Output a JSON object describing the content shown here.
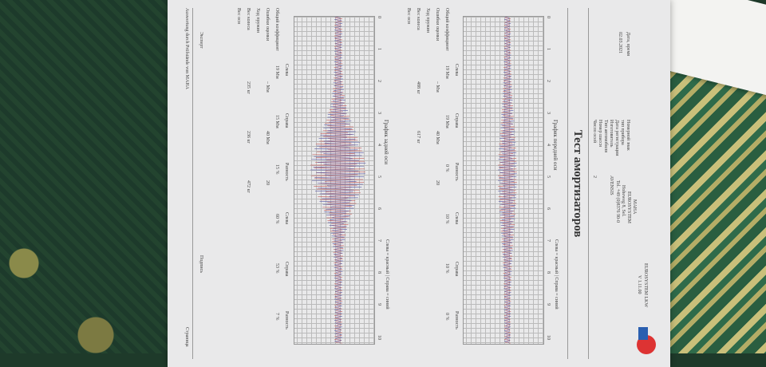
{
  "document": {
    "title": "Тест амортизаторов",
    "header_left": [
      "MAHA",
      "EUROSYSTEM",
      "Hoheweg 8, Sel.",
      "Tel. +49 (0)8376 90-0"
    ],
    "header_right": [
      "EUROSYSTEM LKW",
      "V 1.11.00"
    ],
    "info_labels": [
      "Номерной знак",
      "тип прибора",
      "Дата регистрации",
      "Изготовитель",
      "Тип автомобиля",
      "Номер шасси",
      "Число осей"
    ],
    "info_values": [
      "",
      "",
      "",
      "AVENSIS",
      "",
      "",
      "2"
    ],
    "date_label": "Дата, время",
    "date_value": "02.03.2021",
    "front": {
      "title": "График передней оси",
      "legend": "Слева = красный | Справа = синий",
      "col_headers": [
        "Слева",
        "Справа",
        "Разность",
        "Слева",
        "Справа",
        "Разность"
      ],
      "row_labels": [
        "Общий коэффициент",
        "Ошибки оценки",
        "Ход пружин",
        "Вес колеса",
        "Вес оси"
      ],
      "values": [
        "19 Мм",
        "19 Мм",
        "0 %",
        "10 %",
        "10 %",
        "0 %",
        "– Мм",
        "40 Мм",
        "20",
        "488 кг",
        "617 кг"
      ]
    },
    "rear": {
      "title": "График задней оси",
      "legend": "Слева = красный | Справа = синий",
      "col_headers": [
        "Слева",
        "Справа",
        "Разность",
        "Слева",
        "Справа",
        "Разность"
      ],
      "row_labels": [
        "Общий коэффициент",
        "Ошибки оценки",
        "Ход пружин",
        "Вес колеса",
        "Вес оси"
      ],
      "values": [
        "19 Мм",
        "15 Мм",
        "15 %",
        "60 %",
        "53 %",
        "7 %",
        "– Мм",
        "40 Мм",
        "20",
        "235 кг",
        "236 кг",
        "472 кг"
      ]
    },
    "axis_ticks": [
      "0",
      "1",
      "2",
      "3",
      "4",
      "5",
      "6",
      "7",
      "8",
      "9",
      "10"
    ],
    "axis_unit": "Мм",
    "expert_label": "Эксперт",
    "signature_label": "Подпись",
    "footer": "Auswertung durch Prüfstände von MAHA",
    "page_label": "Страница",
    "colors": {
      "left_trace": "#c0504d",
      "right_trace": "#4f4fa0",
      "paper": "#e9e9ea",
      "carpet": "#1e3a2a"
    }
  }
}
